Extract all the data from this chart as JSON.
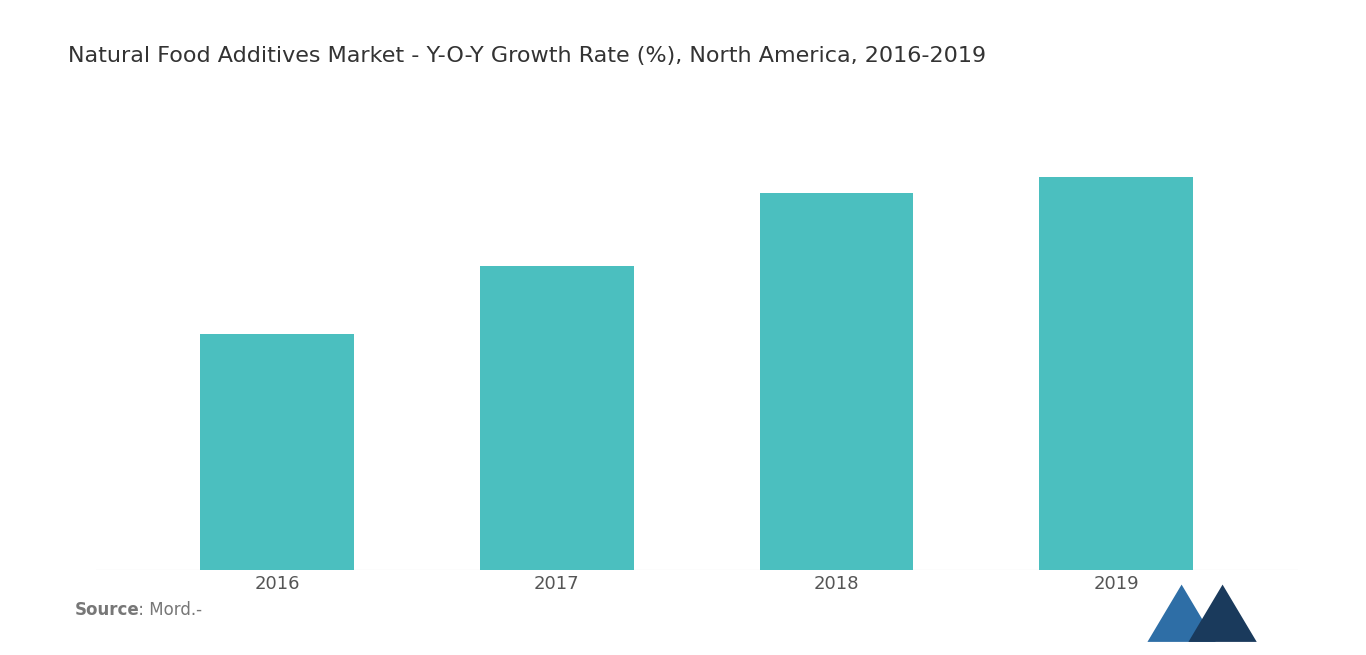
{
  "title": "Natural Food Additives Market - Y-O-Y Growth Rate (%), North America, 2016-2019",
  "categories": [
    "2016",
    "2017",
    "2018",
    "2019"
  ],
  "values": [
    4.5,
    5.8,
    7.2,
    7.5
  ],
  "bar_color": "#4BBFBF",
  "ylim": [
    0,
    9
  ],
  "background_color": "#ffffff",
  "title_fontsize": 16,
  "tick_fontsize": 13,
  "source_text_normal": " : Mord.-",
  "source_text_bold": "Source",
  "figsize": [
    13.66,
    6.55
  ],
  "dpi": 100,
  "logo_color_dark": "#1a3a5c",
  "logo_color_light": "#2e6ea6"
}
